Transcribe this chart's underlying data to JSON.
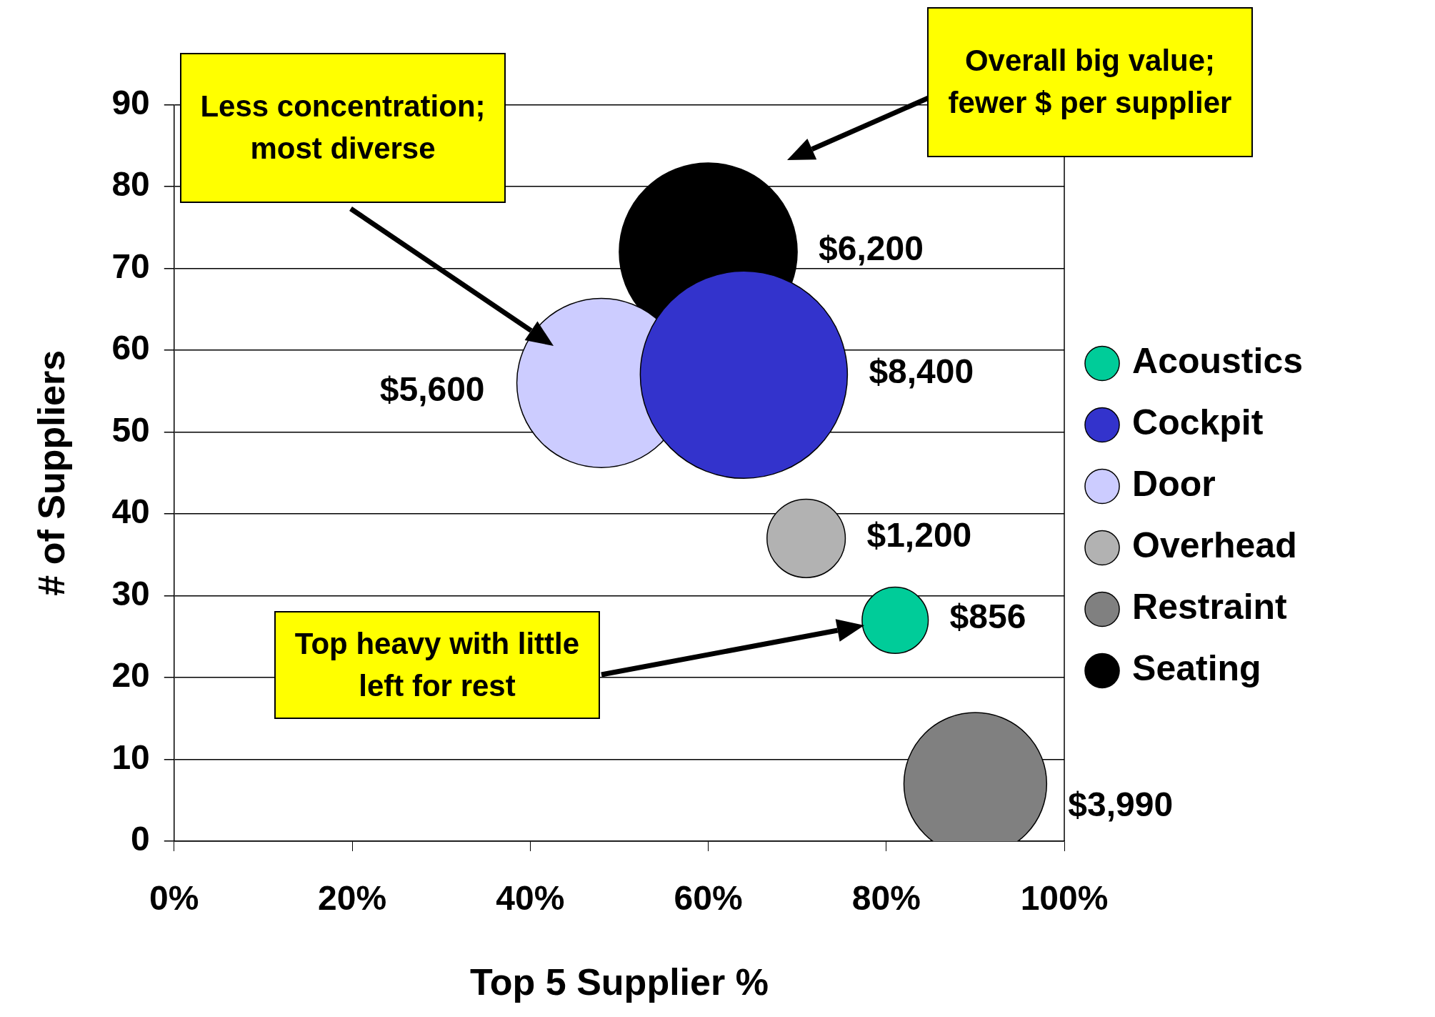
{
  "chart_data": {
    "type": "bubble",
    "xlabel": "Top 5 Supplier %",
    "ylabel": "# of Suppliers",
    "xlim": [
      0,
      100
    ],
    "xticks": [
      {
        "value": 0,
        "label": "0%"
      },
      {
        "value": 20,
        "label": "20%"
      },
      {
        "value": 40,
        "label": "40%"
      },
      {
        "value": 60,
        "label": "60%"
      },
      {
        "value": 80,
        "label": "80%"
      },
      {
        "value": 100,
        "label": "100%"
      }
    ],
    "ylim": [
      0,
      90
    ],
    "yticks": [
      0,
      10,
      20,
      30,
      40,
      50,
      60,
      70,
      80,
      90
    ],
    "grid": "y",
    "legend": "right",
    "marker": "circle",
    "series": [
      {
        "name": "Acoustics",
        "color": "#00cc99",
        "x": [
          81
        ],
        "values": [
          27
        ],
        "sizes": [
          0.102
        ]
      },
      {
        "name": "Cockpit",
        "color": "#3333cc",
        "x": [
          64
        ],
        "values": [
          57
        ],
        "sizes": [
          1
        ]
      },
      {
        "name": "Door",
        "color": "#ccccff",
        "x": [
          48
        ],
        "values": [
          56
        ],
        "sizes": [
          0.667
        ]
      },
      {
        "name": "Overhead",
        "color": "#b2b2b2",
        "x": [
          71
        ],
        "values": [
          37
        ],
        "sizes": [
          0.143
        ]
      },
      {
        "name": "Restraint",
        "color": "#808080",
        "x": [
          90
        ],
        "values": [
          7
        ],
        "sizes": [
          0.475
        ]
      },
      {
        "name": "Seating",
        "color": "#000000",
        "x": [
          60
        ],
        "values": [
          72
        ],
        "sizes": [
          0.738
        ]
      }
    ],
    "annotations": [
      "Less concentration; most diverse",
      "Overall big value; fewer $ per supplier",
      "Top heavy with little left for rest",
      "$856",
      "$8,400",
      "$5,600",
      "$1,200",
      "$3,990",
      "$6,200"
    ]
  }
}
